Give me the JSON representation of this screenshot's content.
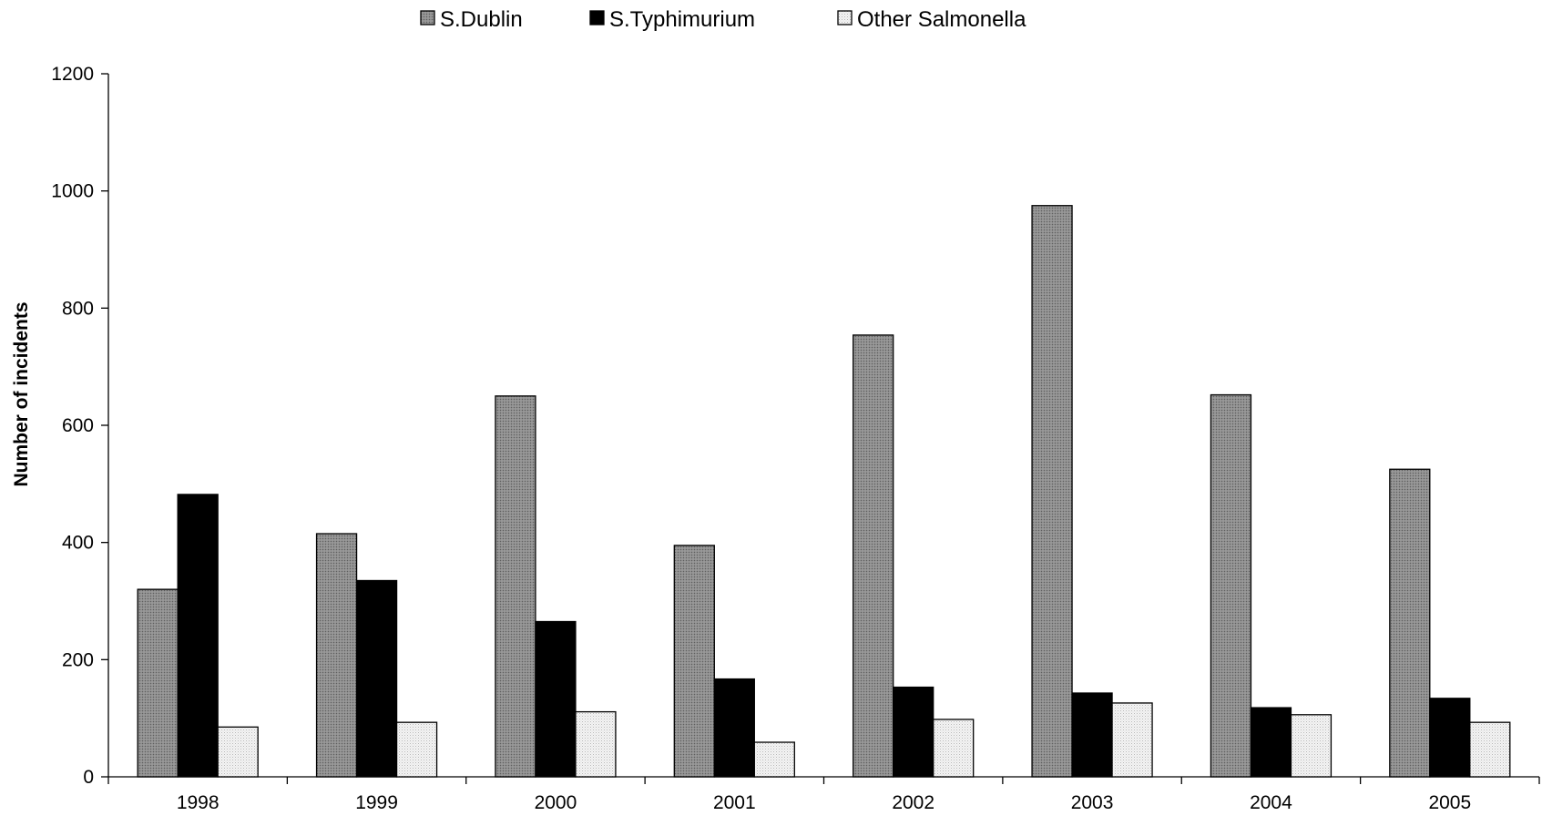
{
  "chart_data": {
    "type": "bar",
    "title": "",
    "xlabel": "",
    "ylabel": "Number of incidents",
    "ylim": [
      0,
      1200
    ],
    "yticks": [
      0,
      200,
      400,
      600,
      800,
      1000,
      1200
    ],
    "grid": false,
    "legend_position": "top",
    "categories": [
      "1998",
      "1999",
      "2000",
      "2001",
      "2002",
      "2003",
      "2004",
      "2005"
    ],
    "series": [
      {
        "name": "S.Dublin",
        "pattern": "dark-stipple",
        "fill_color": "#9a9a9a",
        "values": [
          320,
          415,
          650,
          395,
          754,
          975,
          652,
          525
        ]
      },
      {
        "name": "S.Typhimurium",
        "pattern": "solid",
        "fill_color": "#000000",
        "values": [
          482,
          335,
          265,
          167,
          153,
          143,
          118,
          134
        ]
      },
      {
        "name": "Other Salmonella",
        "pattern": "light-stipple",
        "fill_color": "#e8e8e8",
        "values": [
          85,
          93,
          111,
          59,
          98,
          126,
          106,
          93
        ]
      }
    ]
  }
}
